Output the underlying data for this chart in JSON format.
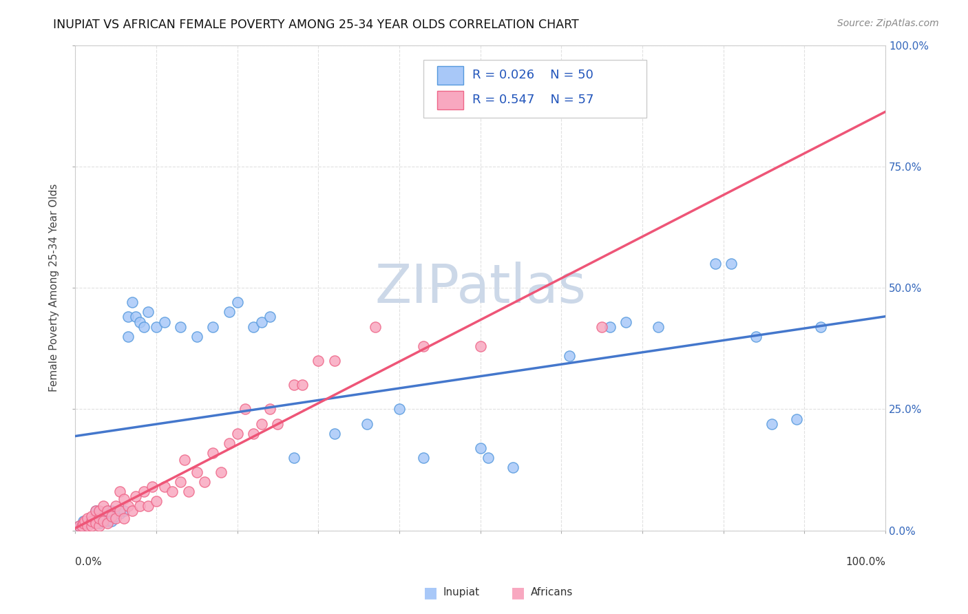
{
  "title": "INUPIAT VS AFRICAN FEMALE POVERTY AMONG 25-34 YEAR OLDS CORRELATION CHART",
  "source": "Source: ZipAtlas.com",
  "ylabel": "Female Poverty Among 25-34 Year Olds",
  "xlim": [
    0,
    1.0
  ],
  "ylim": [
    0,
    1.0
  ],
  "xticks": [
    0.0,
    0.1,
    0.2,
    0.3,
    0.4,
    0.5,
    0.6,
    0.7,
    0.8,
    0.9,
    1.0
  ],
  "yticks": [
    0.0,
    0.25,
    0.5,
    0.75,
    1.0
  ],
  "right_yticks": [
    0.0,
    0.25,
    0.5,
    0.75,
    1.0
  ],
  "right_yticklabels": [
    "0.0%",
    "25.0%",
    "50.0%",
    "75.0%",
    "100.0%"
  ],
  "legend_R_inupiat": "R = 0.026",
  "legend_N_inupiat": "N = 50",
  "legend_R_africans": "R = 0.547",
  "legend_N_africans": "N = 57",
  "inupiat_color": "#a8c8f8",
  "africans_color": "#f8a8c0",
  "inupiat_edge_color": "#5599dd",
  "africans_edge_color": "#ee6688",
  "inupiat_line_color": "#4477cc",
  "africans_line_color": "#ee5577",
  "diagonal_color": "#e0b0c0",
  "watermark": "ZIPatlas",
  "watermark_color": "#ccd8e8",
  "background_color": "#ffffff",
  "grid_color": "#e0e0e0",
  "inupiat_x": [
    0.005,
    0.008,
    0.01,
    0.015,
    0.02,
    0.025,
    0.025,
    0.03,
    0.04,
    0.04,
    0.045,
    0.045,
    0.05,
    0.055,
    0.06,
    0.065,
    0.065,
    0.07,
    0.075,
    0.08,
    0.085,
    0.09,
    0.1,
    0.11,
    0.13,
    0.15,
    0.17,
    0.19,
    0.2,
    0.22,
    0.23,
    0.24,
    0.27,
    0.32,
    0.36,
    0.4,
    0.43,
    0.5,
    0.51,
    0.54,
    0.61,
    0.66,
    0.68,
    0.72,
    0.79,
    0.81,
    0.84,
    0.86,
    0.89,
    0.92
  ],
  "inupiat_y": [
    0.01,
    0.01,
    0.02,
    0.015,
    0.015,
    0.02,
    0.04,
    0.015,
    0.02,
    0.04,
    0.02,
    0.04,
    0.03,
    0.035,
    0.04,
    0.4,
    0.44,
    0.47,
    0.44,
    0.43,
    0.42,
    0.45,
    0.42,
    0.43,
    0.42,
    0.4,
    0.42,
    0.45,
    0.47,
    0.42,
    0.43,
    0.44,
    0.15,
    0.2,
    0.22,
    0.25,
    0.15,
    0.17,
    0.15,
    0.13,
    0.36,
    0.42,
    0.43,
    0.42,
    0.55,
    0.55,
    0.4,
    0.22,
    0.23,
    0.42
  ],
  "africans_x": [
    0.005,
    0.008,
    0.01,
    0.012,
    0.015,
    0.015,
    0.02,
    0.02,
    0.02,
    0.025,
    0.025,
    0.03,
    0.03,
    0.03,
    0.035,
    0.035,
    0.04,
    0.04,
    0.045,
    0.05,
    0.05,
    0.055,
    0.055,
    0.06,
    0.06,
    0.065,
    0.07,
    0.075,
    0.08,
    0.085,
    0.09,
    0.095,
    0.1,
    0.11,
    0.12,
    0.13,
    0.135,
    0.14,
    0.15,
    0.16,
    0.17,
    0.18,
    0.19,
    0.2,
    0.21,
    0.22,
    0.23,
    0.24,
    0.25,
    0.27,
    0.28,
    0.3,
    0.32,
    0.37,
    0.43,
    0.5,
    0.65
  ],
  "africans_y": [
    0.01,
    0.01,
    0.015,
    0.02,
    0.01,
    0.025,
    0.01,
    0.02,
    0.03,
    0.015,
    0.04,
    0.01,
    0.025,
    0.04,
    0.02,
    0.05,
    0.015,
    0.04,
    0.03,
    0.025,
    0.05,
    0.04,
    0.08,
    0.025,
    0.065,
    0.05,
    0.04,
    0.07,
    0.05,
    0.08,
    0.05,
    0.09,
    0.06,
    0.09,
    0.08,
    0.1,
    0.145,
    0.08,
    0.12,
    0.1,
    0.16,
    0.12,
    0.18,
    0.2,
    0.25,
    0.2,
    0.22,
    0.25,
    0.22,
    0.3,
    0.3,
    0.35,
    0.35,
    0.42,
    0.38,
    0.38,
    0.42
  ]
}
